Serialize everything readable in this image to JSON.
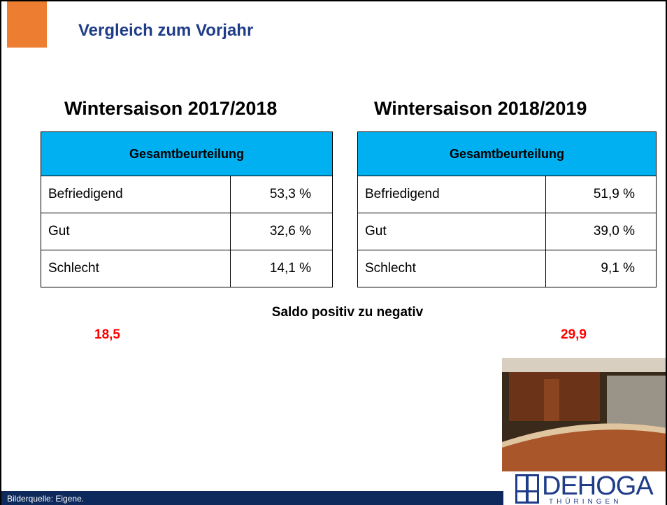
{
  "header": {
    "title": "Vergleich zum Vorjahr"
  },
  "tables": [
    {
      "heading": "Wintersaison 2017/2018",
      "column_header": "Gesamtbeurteilung",
      "rows": [
        [
          "Befriedigend",
          "53,3 %"
        ],
        [
          "Gut",
          "32,6 %"
        ],
        [
          "Schlecht",
          "14,1 %"
        ]
      ]
    },
    {
      "heading": "Wintersaison 2018/2019",
      "column_header": "Gesamtbeurteilung",
      "rows": [
        [
          "Befriedigend",
          "51,9 %"
        ],
        [
          "Gut",
          "39,0 %"
        ],
        [
          "Schlecht",
          "9,1 %"
        ]
      ]
    }
  ],
  "saldo": {
    "label": "Saldo positiv zu negativ",
    "values": [
      "18,5",
      "29,9"
    ]
  },
  "footer": {
    "source": "Bilderquelle:   Eigene."
  },
  "logo": {
    "name": "DEHOGA",
    "region": "THÜRINGEN"
  }
}
